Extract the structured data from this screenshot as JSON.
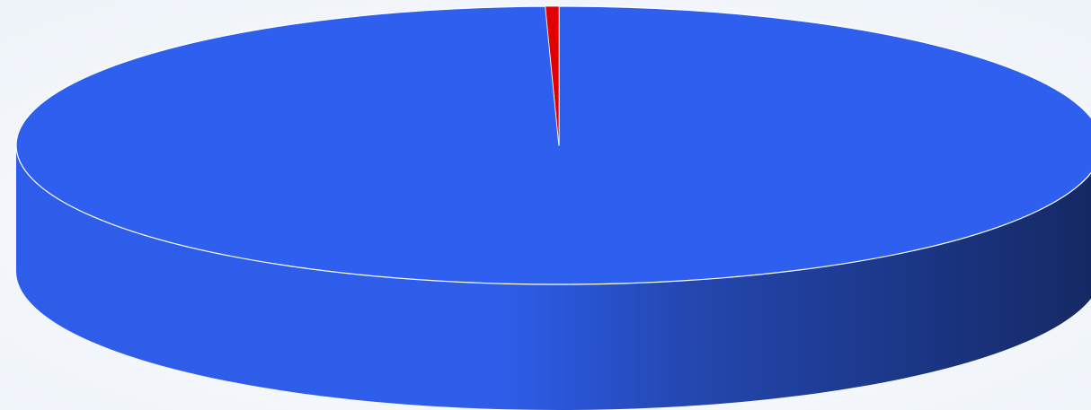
{
  "chart_data": {
    "type": "pie",
    "style": "3d",
    "title": "",
    "legend": "none",
    "data_labels": "none",
    "slices": [
      {
        "value": 99.6,
        "color": "#2f5fee",
        "side_color_light": "#2d5de9",
        "side_color_dark": "#142862"
      },
      {
        "value": 0.4,
        "color": "#e00000",
        "side_color_light": "#c00000",
        "side_color_dark": "#600000"
      }
    ],
    "start_angle_deg": -90,
    "edge_color": "#ffffff",
    "background_color": "#f3f7fb"
  }
}
